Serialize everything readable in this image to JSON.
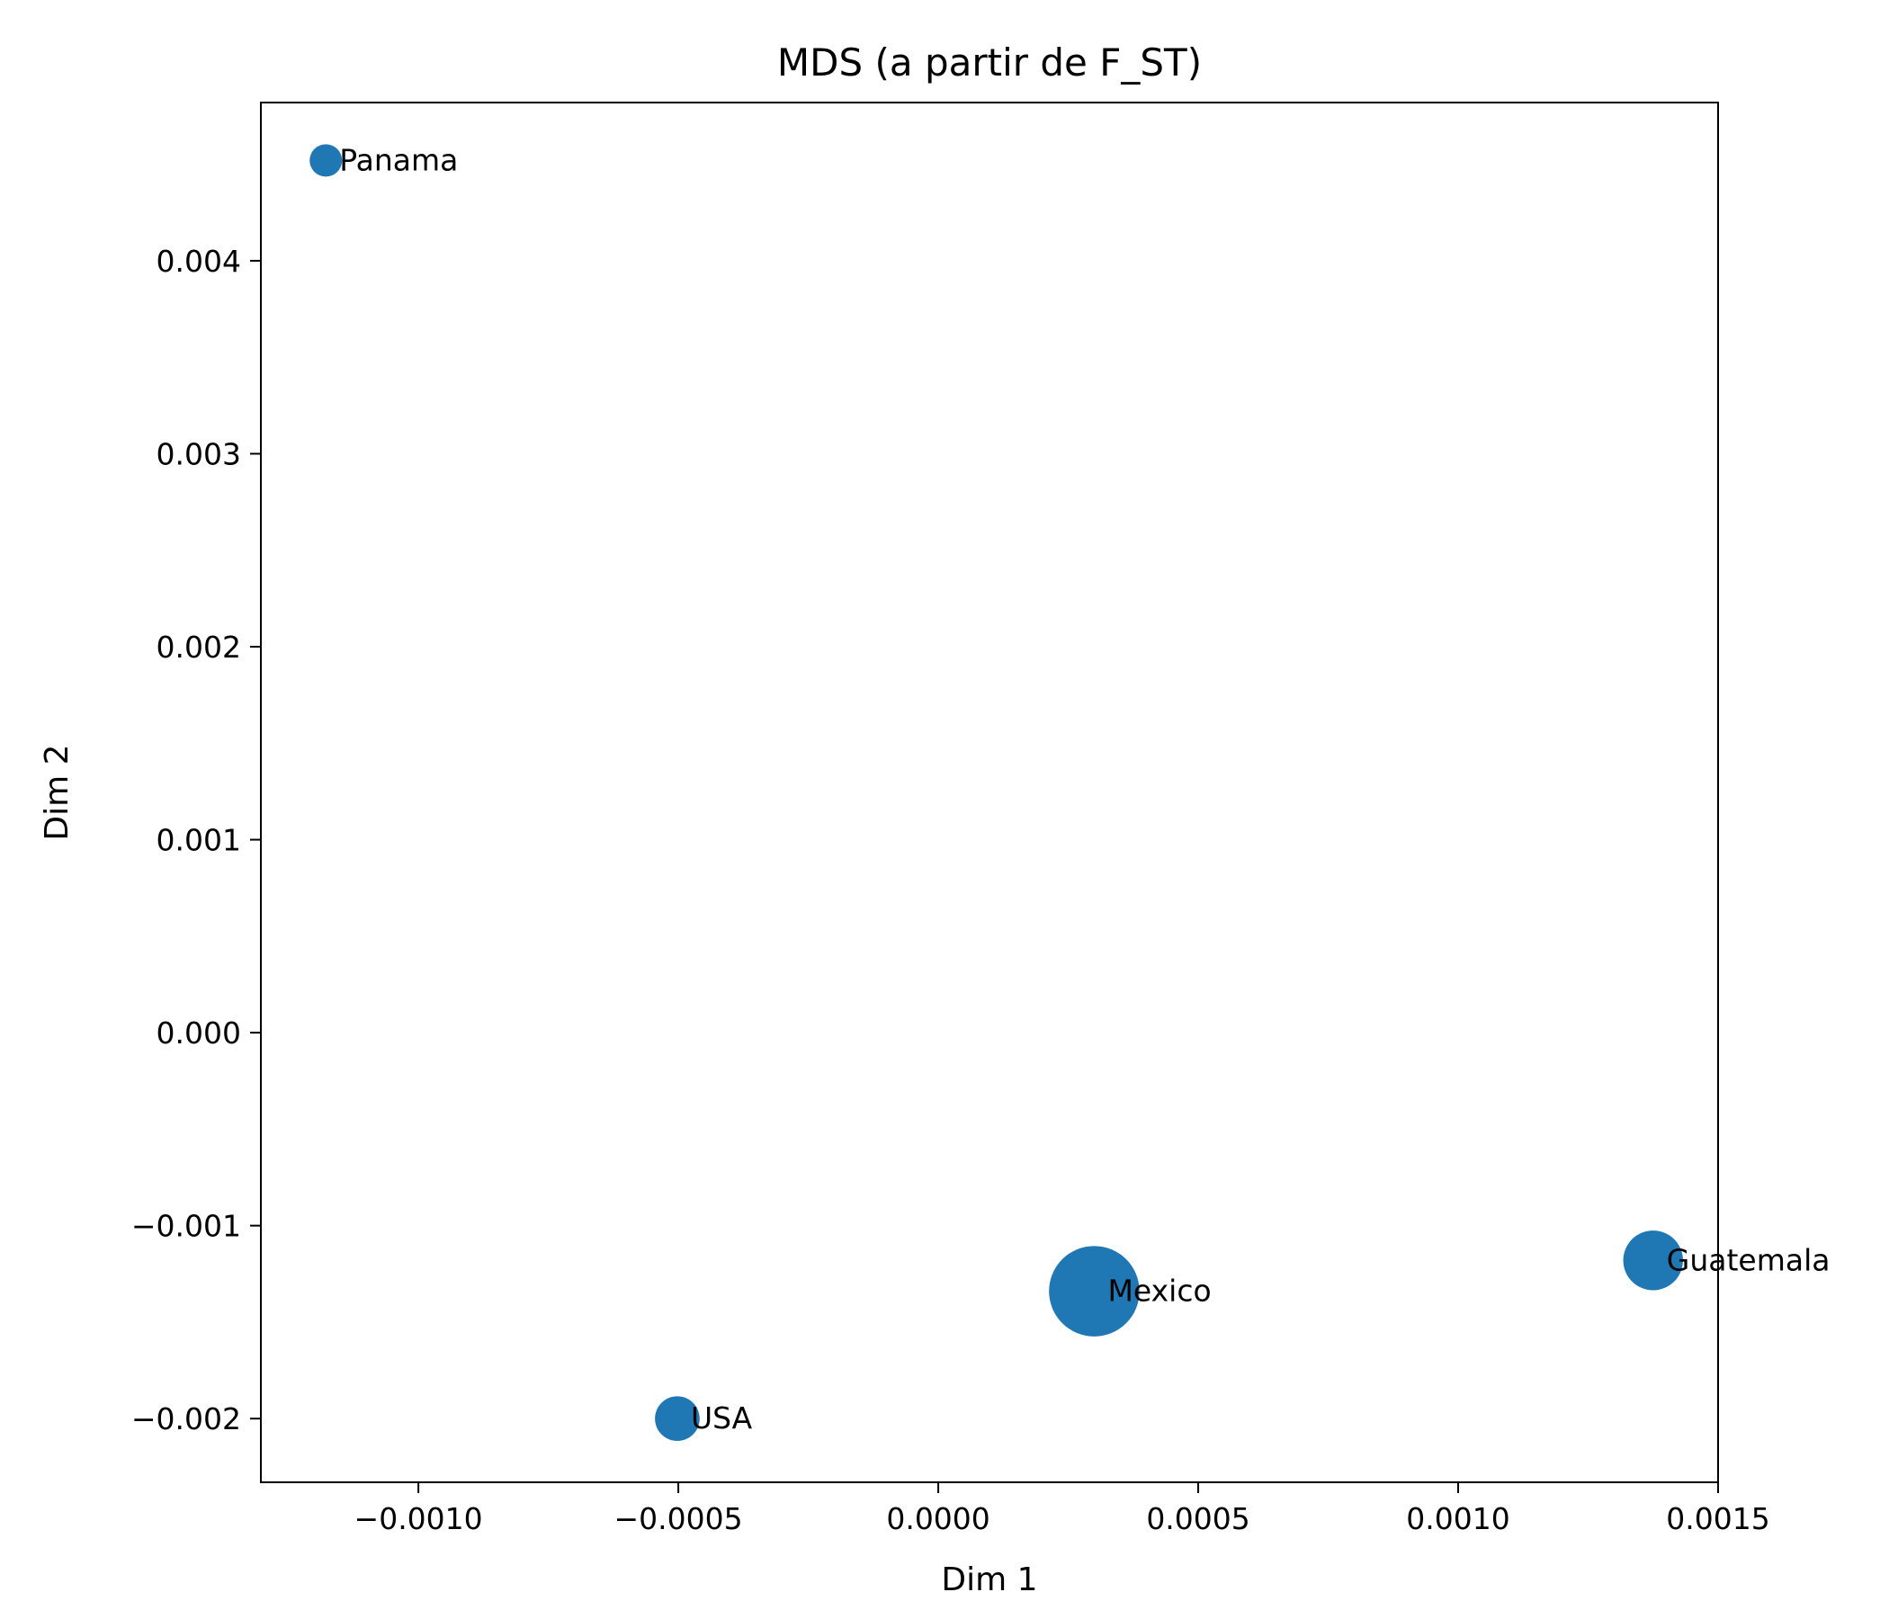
{
  "chart_data": {
    "type": "scatter",
    "title": "MDS (a partir de F_ST)",
    "xlabel": "Dim 1",
    "ylabel": "Dim 2",
    "xlim": [
      -0.001303,
      0.0015
    ],
    "ylim": [
      -0.00233,
      0.00482
    ],
    "xticks": [
      -0.001,
      -0.0005,
      0.0,
      0.0005,
      0.001,
      0.0015
    ],
    "xtick_labels": [
      "−0.0010",
      "−0.0005",
      "0.0000",
      "0.0005",
      "0.0010",
      "0.0015"
    ],
    "yticks": [
      -0.002,
      -0.001,
      0.0,
      0.001,
      0.002,
      0.003,
      0.004
    ],
    "ytick_labels": [
      "−0.002",
      "−0.001",
      "0.000",
      "0.001",
      "0.002",
      "0.003",
      "0.004"
    ],
    "grid": false,
    "marker_color": "#1f77b4",
    "points": [
      {
        "label": "Panama",
        "x": -0.001178,
        "y": 0.00452,
        "relative_size": 1.0
      },
      {
        "label": "USA",
        "x": -0.000502,
        "y": -0.002,
        "relative_size": 1.9
      },
      {
        "label": "Mexico",
        "x": 0.0003,
        "y": -0.00134,
        "relative_size": 7.8
      },
      {
        "label": "Guatemala",
        "x": 0.001375,
        "y": -0.00118,
        "relative_size": 3.4
      }
    ]
  }
}
